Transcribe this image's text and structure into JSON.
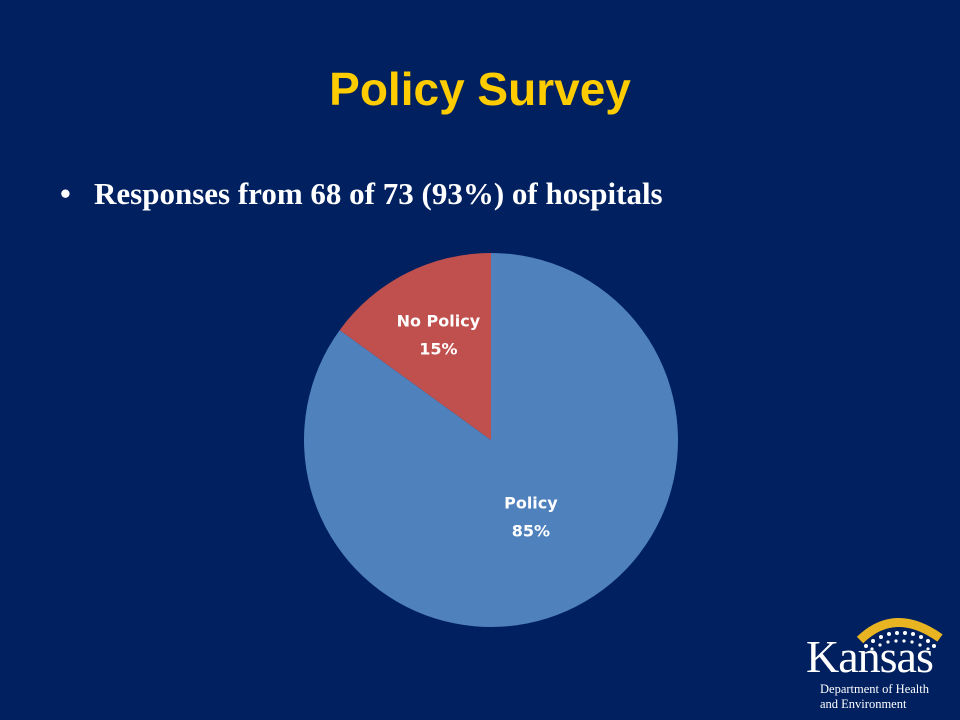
{
  "slide": {
    "title": "Policy Survey",
    "bullet": "Responses from 68 of 73 (93%) of hospitals"
  },
  "chart_data": {
    "type": "pie",
    "slices": [
      {
        "label": "Policy",
        "value": 85,
        "value_label": "85%",
        "color": "#4F81BD"
      },
      {
        "label": "No Policy",
        "value": 15,
        "value_label": "15%",
        "color": "#C0504D"
      }
    ]
  },
  "logo": {
    "word": "Kansas",
    "line1": "Department of Health",
    "line2": "and Environment",
    "arc_color": "#E8B422"
  },
  "colors": {
    "background": "#002060",
    "title": "#FFCC00",
    "text": "#FFFFFF",
    "slice_label": "#FFFFFF"
  }
}
